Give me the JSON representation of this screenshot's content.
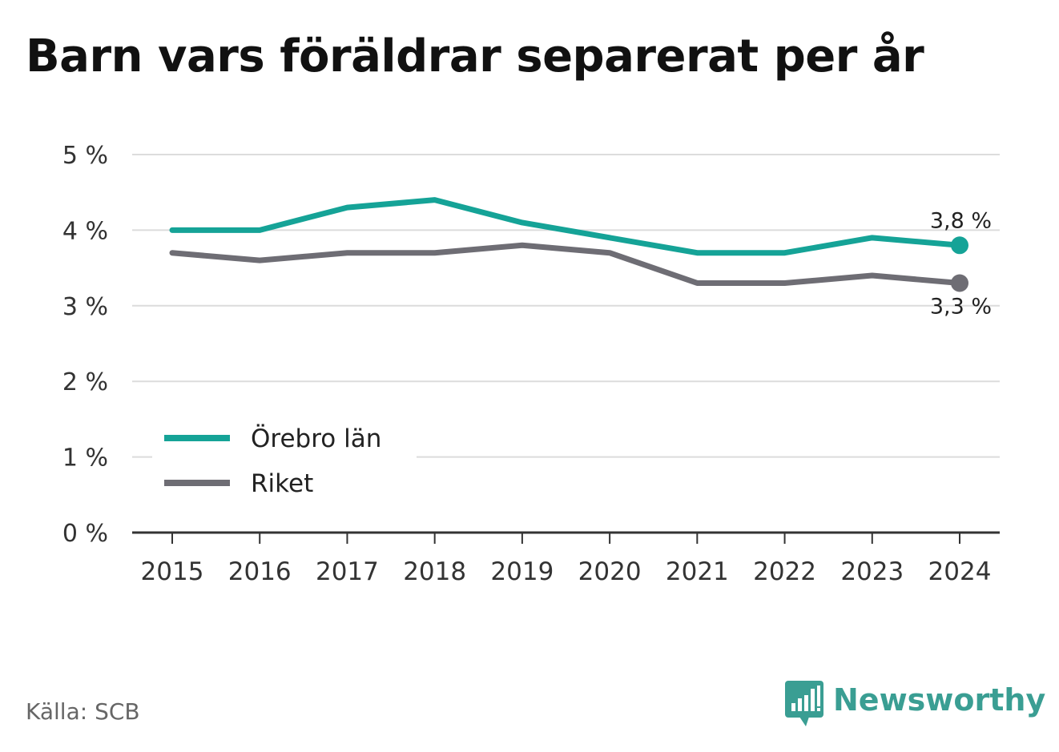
{
  "title": "Barn vars föräldrar separerat per år",
  "source": "Källa: SCB",
  "brand": {
    "name": "Newsworthy",
    "logo_icon": "bar-chart-speech-bubble-icon",
    "color": "#3a9e93"
  },
  "chart_data": {
    "type": "line",
    "title": "Barn vars föräldrar separerat per år",
    "x": [
      "2015",
      "2016",
      "2017",
      "2018",
      "2019",
      "2020",
      "2021",
      "2022",
      "2023",
      "2024"
    ],
    "series": [
      {
        "name": "Örebro län",
        "color": "#15a397",
        "values": [
          4.0,
          4.0,
          4.3,
          4.4,
          4.1,
          3.9,
          3.7,
          3.7,
          3.9,
          3.8
        ],
        "end_label": "3,8 %"
      },
      {
        "name": "Riket",
        "color": "#6e6d74",
        "values": [
          3.7,
          3.6,
          3.7,
          3.7,
          3.8,
          3.7,
          3.3,
          3.3,
          3.4,
          3.3
        ],
        "end_label": "3,3 %"
      }
    ],
    "ylim": [
      0,
      5
    ],
    "y_ticks": [
      {
        "value": 0,
        "label": "0 %"
      },
      {
        "value": 1,
        "label": "1 %"
      },
      {
        "value": 2,
        "label": "2 %"
      },
      {
        "value": 3,
        "label": "3 %"
      },
      {
        "value": 4,
        "label": "4 %"
      },
      {
        "value": 5,
        "label": "5 %"
      }
    ],
    "grid": true,
    "legend_position": "bottom-left"
  }
}
